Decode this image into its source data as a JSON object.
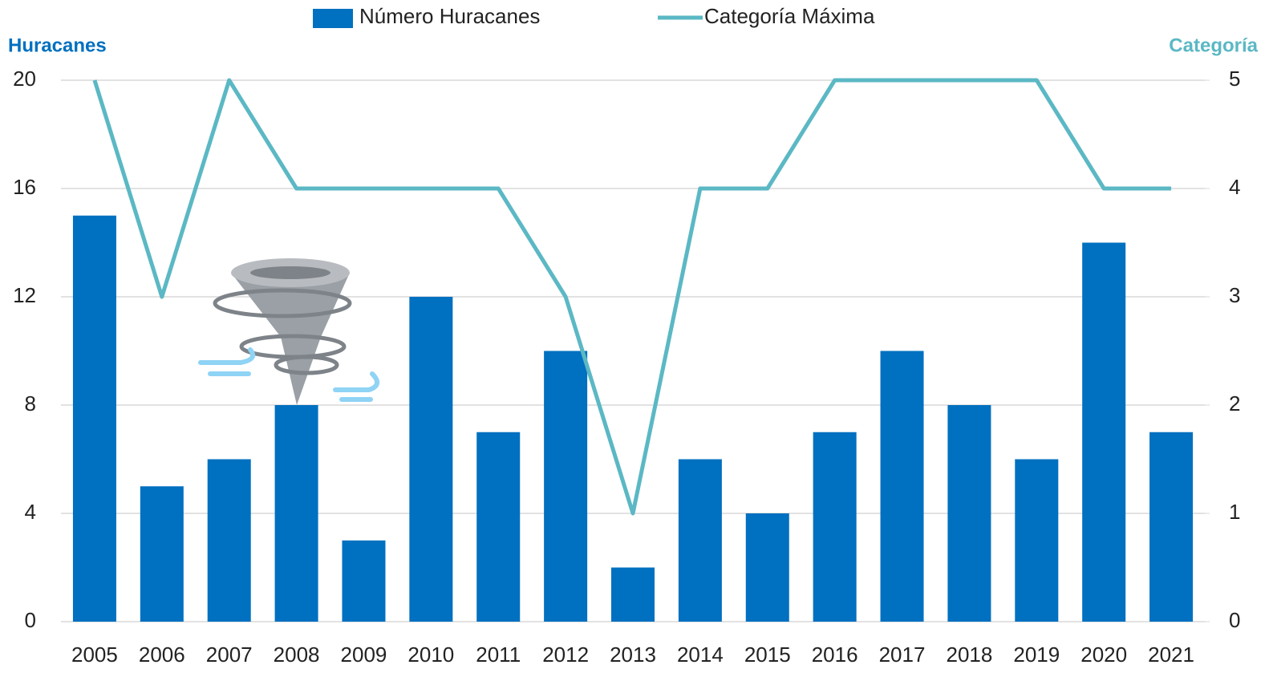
{
  "chart_data": {
    "type": "bar",
    "categories": [
      "2005",
      "2006",
      "2007",
      "2008",
      "2009",
      "2010",
      "2011",
      "2012",
      "2013",
      "2014",
      "2015",
      "2016",
      "2017",
      "2018",
      "2019",
      "2020",
      "2021"
    ],
    "series": [
      {
        "name": "Número Huracanes",
        "color": "#0070c0",
        "values": [
          15,
          5,
          6,
          8,
          3,
          12,
          7,
          10,
          2,
          6,
          4,
          7,
          10,
          8,
          6,
          14,
          7
        ]
      },
      {
        "name": "Categoría Máxima",
        "color": "#5bb8c4",
        "type": "line",
        "axis": "y2",
        "values": [
          5,
          3,
          5,
          4,
          4,
          4,
          4,
          3,
          1,
          4,
          4,
          5,
          5,
          5,
          5,
          4,
          4
        ]
      }
    ],
    "y_label": "Huracanes",
    "y2_label": "Categoría",
    "ylim": [
      0,
      20
    ],
    "yticks": [
      0,
      4,
      8,
      12,
      16,
      20
    ],
    "y2lim": [
      0,
      5
    ],
    "y2ticks": [
      0,
      1,
      2,
      3,
      4,
      5
    ],
    "grid": true,
    "legend": "top"
  }
}
